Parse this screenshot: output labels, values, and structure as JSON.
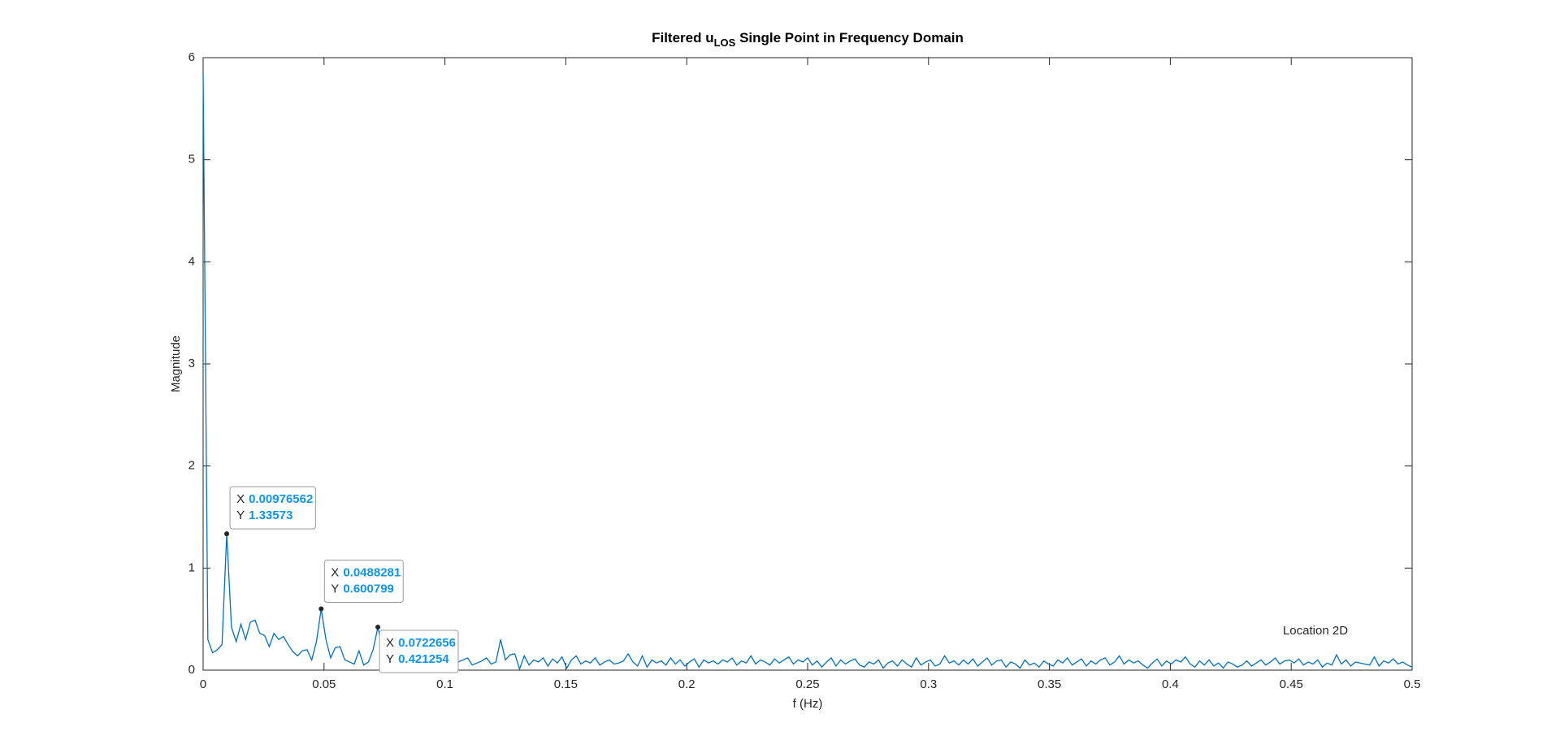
{
  "chart_data": {
    "type": "line",
    "title": "Filtered u",
    "title_subscript": "LOS",
    "title_rest": " Single Point in Frequency Domain",
    "x_label": "f (Hz)",
    "y_label": "Magnitude",
    "annotation": "Location 2D",
    "xlim": [
      0,
      0.5
    ],
    "xticks": [
      0,
      0.05,
      0.1,
      0.15,
      0.2,
      0.25,
      0.3,
      0.35,
      0.4,
      0.45,
      0.5
    ],
    "ylim": [
      0,
      6
    ],
    "yticks": [
      0,
      1,
      2,
      3,
      4,
      5,
      6
    ],
    "grid": false,
    "x": [
      0,
      0.001953,
      0.003906,
      0.005859,
      0.007813,
      0.009766,
      0.011719,
      0.013672,
      0.015625,
      0.017578,
      0.019531,
      0.021484,
      0.023438,
      0.025391,
      0.027344,
      0.029297,
      0.03125,
      0.033203,
      0.035156,
      0.037109,
      0.039063,
      0.041016,
      0.042969,
      0.044922,
      0.046875,
      0.048828,
      0.050781,
      0.052734,
      0.054688,
      0.056641,
      0.058594,
      0.060547,
      0.0625,
      0.064453,
      0.066406,
      0.068359,
      0.070313,
      0.072266,
      0.074219,
      0.076172,
      0.078125,
      0.080078,
      0.082031,
      0.083984,
      0.085938,
      0.087891,
      0.089844,
      0.091797,
      0.09375,
      0.095703,
      0.097656,
      0.099609,
      0.101563,
      0.103516,
      0.105469,
      0.107422,
      0.109375,
      0.111328,
      0.113281,
      0.115234,
      0.117188,
      0.119141,
      0.121094,
      0.123047,
      0.125,
      0.126953,
      0.128906,
      0.130859,
      0.132813,
      0.134766,
      0.136719,
      0.138672,
      0.140625,
      0.142578,
      0.144531,
      0.146484,
      0.148438,
      0.150391,
      0.152344,
      0.154297,
      0.15625,
      0.158203,
      0.160156,
      0.162109,
      0.164063,
      0.166016,
      0.167969,
      0.169922,
      0.171875,
      0.173828,
      0.175781,
      0.177734,
      0.179688,
      0.181641,
      0.183594,
      0.185547,
      0.1875,
      0.189453,
      0.191406,
      0.193359,
      0.195313,
      0.197266,
      0.199219,
      0.201172,
      0.203125,
      0.205078,
      0.207031,
      0.208984,
      0.210938,
      0.212891,
      0.214844,
      0.216797,
      0.21875,
      0.220703,
      0.222656,
      0.224609,
      0.226563,
      0.228516,
      0.230469,
      0.232422,
      0.234375,
      0.236328,
      0.238281,
      0.240234,
      0.242188,
      0.244141,
      0.246094,
      0.248047,
      0.25,
      0.251953,
      0.253906,
      0.255859,
      0.257813,
      0.259766,
      0.261719,
      0.263672,
      0.265625,
      0.267578,
      0.269531,
      0.271484,
      0.273438,
      0.275391,
      0.277344,
      0.279297,
      0.28125,
      0.283203,
      0.285156,
      0.287109,
      0.289063,
      0.291016,
      0.292969,
      0.294922,
      0.296875,
      0.298828,
      0.300781,
      0.302734,
      0.304688,
      0.306641,
      0.308594,
      0.310547,
      0.3125,
      0.314453,
      0.316406,
      0.318359,
      0.320313,
      0.322266,
      0.324219,
      0.326172,
      0.328125,
      0.330078,
      0.332031,
      0.333984,
      0.335938,
      0.337891,
      0.339844,
      0.341797,
      0.34375,
      0.345703,
      0.347656,
      0.349609,
      0.351563,
      0.353516,
      0.355469,
      0.357422,
      0.359375,
      0.361328,
      0.363281,
      0.365234,
      0.367188,
      0.369141,
      0.371094,
      0.373047,
      0.375,
      0.376953,
      0.378906,
      0.380859,
      0.382813,
      0.384766,
      0.386719,
      0.388672,
      0.390625,
      0.392578,
      0.394531,
      0.396484,
      0.398438,
      0.400391,
      0.402344,
      0.404297,
      0.40625,
      0.408203,
      0.410156,
      0.412109,
      0.414063,
      0.416016,
      0.417969,
      0.419922,
      0.421875,
      0.423828,
      0.425781,
      0.427734,
      0.429688,
      0.431641,
      0.433594,
      0.435547,
      0.4375,
      0.439453,
      0.441406,
      0.443359,
      0.445313,
      0.447266,
      0.449219,
      0.451172,
      0.453125,
      0.455078,
      0.457031,
      0.458984,
      0.460938,
      0.462891,
      0.464844,
      0.466797,
      0.46875,
      0.470703,
      0.472656,
      0.474609,
      0.476563,
      0.478516,
      0.480469,
      0.482422,
      0.484375,
      0.486328,
      0.488281,
      0.490234,
      0.492188,
      0.494141,
      0.496094,
      0.498047,
      0.5
    ],
    "series": [
      {
        "color": "#0072bd",
        "values": [
          5.85,
          0.3,
          0.17,
          0.2,
          0.25,
          1.33573,
          0.42,
          0.28,
          0.45,
          0.3,
          0.47,
          0.49,
          0.36,
          0.34,
          0.23,
          0.36,
          0.3,
          0.33,
          0.25,
          0.18,
          0.14,
          0.19,
          0.2,
          0.1,
          0.28,
          0.600799,
          0.3,
          0.12,
          0.22,
          0.23,
          0.1,
          0.08,
          0.06,
          0.19,
          0.05,
          0.08,
          0.2,
          0.421254,
          0.2,
          0.08,
          0.05,
          0.09,
          0.04,
          0.12,
          0.07,
          0.03,
          0.1,
          0.06,
          0.09,
          0.02,
          0.08,
          0.1,
          0.05,
          0.12,
          0.08,
          0.1,
          0.12,
          0.05,
          0.07,
          0.09,
          0.12,
          0.06,
          0.08,
          0.3,
          0.1,
          0.15,
          0.16,
          0.01,
          0.14,
          0.05,
          0.1,
          0.08,
          0.12,
          0.04,
          0.11,
          0.07,
          0.13,
          0.02,
          0.1,
          0.14,
          0.06,
          0.09,
          0.07,
          0.12,
          0.05,
          0.08,
          0.1,
          0.06,
          0.07,
          0.09,
          0.16,
          0.08,
          0.04,
          0.14,
          0.03,
          0.1,
          0.07,
          0.09,
          0.05,
          0.12,
          0.06,
          0.1,
          0.04,
          0.08,
          0.11,
          0.03,
          0.1,
          0.07,
          0.09,
          0.06,
          0.1,
          0.08,
          0.12,
          0.05,
          0.09,
          0.07,
          0.14,
          0.06,
          0.1,
          0.08,
          0.05,
          0.11,
          0.07,
          0.1,
          0.13,
          0.06,
          0.1,
          0.08,
          0.12,
          0.05,
          0.09,
          0.03,
          0.08,
          0.12,
          0.04,
          0.1,
          0.06,
          0.09,
          0.11,
          0.05,
          0.03,
          0.08,
          0.06,
          0.1,
          0.02,
          0.07,
          0.09,
          0.04,
          0.1,
          0.06,
          0.03,
          0.12,
          0.05,
          0.08,
          0.1,
          0.04,
          0.06,
          0.14,
          0.07,
          0.09,
          0.05,
          0.1,
          0.06,
          0.11,
          0.04,
          0.08,
          0.12,
          0.05,
          0.09,
          0.1,
          0.03,
          0.08,
          0.06,
          0.02,
          0.1,
          0.05,
          0.07,
          0.03,
          0.09,
          0.06,
          0.04,
          0.1,
          0.07,
          0.12,
          0.05,
          0.08,
          0.11,
          0.04,
          0.09,
          0.06,
          0.1,
          0.12,
          0.05,
          0.08,
          0.14,
          0.06,
          0.1,
          0.07,
          0.09,
          0.05,
          0.02,
          0.07,
          0.11,
          0.04,
          0.09,
          0.06,
          0.1,
          0.08,
          0.13,
          0.06,
          0.03,
          0.09,
          0.05,
          0.1,
          0.04,
          0.07,
          0.02,
          0.08,
          0.06,
          0.03,
          0.05,
          0.09,
          0.04,
          0.07,
          0.1,
          0.05,
          0.08,
          0.12,
          0.06,
          0.09,
          0.1,
          0.07,
          0.11,
          0.05,
          0.08,
          0.06,
          0.1,
          0.03,
          0.07,
          0.05,
          0.15,
          0.06,
          0.1,
          0.04,
          0.08,
          0.07,
          0.06,
          0.05,
          0.13,
          0.04,
          0.09,
          0.07,
          0.11,
          0.06,
          0.08,
          0.05,
          0.03
        ]
      }
    ],
    "datatip_x_label": "X",
    "datatip_y_label": "Y",
    "datatips": [
      {
        "x": 0.00976562,
        "y": 1.33573
      },
      {
        "x": 0.0488281,
        "y": 0.600799
      },
      {
        "x": 0.0722656,
        "y": 0.421254
      }
    ]
  }
}
